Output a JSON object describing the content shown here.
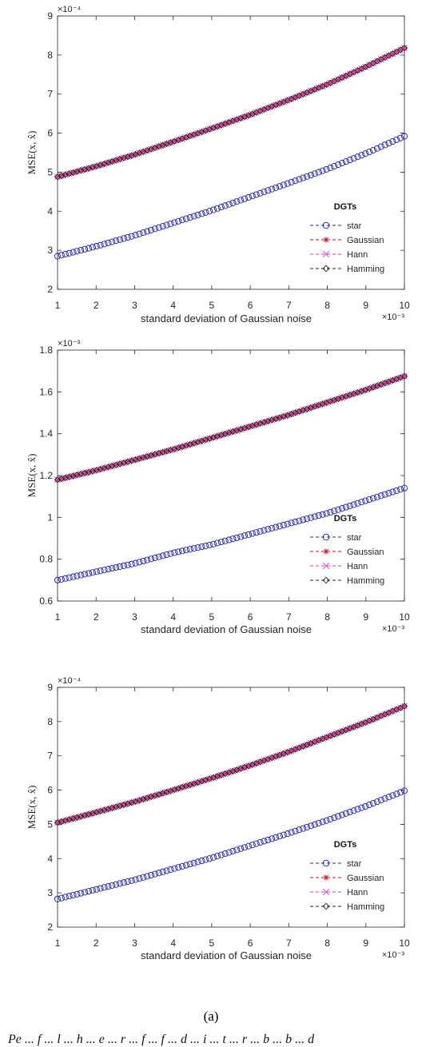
{
  "chart_data": [
    {
      "type": "scatter",
      "title": "",
      "xlabel": "standard deviation of Gaussian noise",
      "ylabel": "MSE(x, x̂)",
      "x_exponent": "×10⁻³",
      "y_exponent": "×10⁻⁴",
      "xlim": [
        1,
        10
      ],
      "ylim": [
        2,
        9
      ],
      "xticks": [
        1,
        2,
        3,
        4,
        5,
        6,
        7,
        8,
        9,
        10
      ],
      "yticks": [
        2,
        3,
        4,
        5,
        6,
        7,
        8,
        9
      ],
      "grid": false,
      "legend_title": "DGTs",
      "legend_placement": "bottom-right",
      "series": [
        {
          "name": "star",
          "marker": "circle",
          "color": "#1f1fb4",
          "x": [
            1,
            2,
            3,
            4,
            5,
            6,
            7,
            8,
            9,
            10
          ],
          "y": [
            2.85,
            3.1,
            3.38,
            3.7,
            4.02,
            4.37,
            4.72,
            5.08,
            5.48,
            5.92
          ]
        },
        {
          "name": "Gaussian",
          "marker": "star",
          "color": "#c0102a",
          "x": [
            1,
            2,
            3,
            4,
            5,
            6,
            7,
            8,
            9,
            10
          ],
          "y": [
            4.88,
            5.15,
            5.45,
            5.78,
            6.12,
            6.47,
            6.85,
            7.25,
            7.7,
            8.18
          ]
        },
        {
          "name": "Hann",
          "marker": "x",
          "color": "#d040c8",
          "x": [
            1,
            2,
            3,
            4,
            5,
            6,
            7,
            8,
            9,
            10
          ],
          "y": [
            4.88,
            5.15,
            5.45,
            5.78,
            6.12,
            6.47,
            6.85,
            7.25,
            7.7,
            8.18
          ]
        },
        {
          "name": "Hamming",
          "marker": "diamond",
          "color": "#222222",
          "x": [
            1,
            2,
            3,
            4,
            5,
            6,
            7,
            8,
            9,
            10
          ],
          "y": [
            4.88,
            5.15,
            5.45,
            5.78,
            6.12,
            6.47,
            6.85,
            7.25,
            7.7,
            8.18
          ]
        }
      ]
    },
    {
      "type": "scatter",
      "title": "",
      "xlabel": "standard deviation of Gaussian noise",
      "ylabel": "MSE(x, x̂)",
      "x_exponent": "×10⁻³",
      "y_exponent": "×10⁻³",
      "xlim": [
        1,
        10
      ],
      "ylim": [
        0.6,
        1.8
      ],
      "xticks": [
        1,
        2,
        3,
        4,
        5,
        6,
        7,
        8,
        9,
        10
      ],
      "yticks": [
        0.6,
        0.8,
        1,
        1.2,
        1.4,
        1.6,
        1.8
      ],
      "grid": false,
      "legend_title": "DGTs",
      "legend_placement": "bottom-right",
      "series": [
        {
          "name": "star",
          "marker": "circle",
          "color": "#1f1fb4",
          "x": [
            1,
            2,
            3,
            4,
            5,
            6,
            7,
            8,
            9,
            10
          ],
          "y": [
            0.7,
            0.74,
            0.78,
            0.83,
            0.87,
            0.92,
            0.97,
            1.02,
            1.08,
            1.14
          ]
        },
        {
          "name": "Gaussian",
          "marker": "star",
          "color": "#c0102a",
          "x": [
            1,
            2,
            3,
            4,
            5,
            6,
            7,
            8,
            9,
            10
          ],
          "y": [
            1.18,
            1.225,
            1.275,
            1.325,
            1.38,
            1.435,
            1.49,
            1.55,
            1.61,
            1.675
          ]
        },
        {
          "name": "Hann",
          "marker": "x",
          "color": "#d040c8",
          "x": [
            1,
            2,
            3,
            4,
            5,
            6,
            7,
            8,
            9,
            10
          ],
          "y": [
            1.18,
            1.225,
            1.275,
            1.325,
            1.38,
            1.435,
            1.49,
            1.55,
            1.61,
            1.675
          ]
        },
        {
          "name": "Hamming",
          "marker": "diamond",
          "color": "#222222",
          "x": [
            1,
            2,
            3,
            4,
            5,
            6,
            7,
            8,
            9,
            10
          ],
          "y": [
            1.18,
            1.225,
            1.275,
            1.325,
            1.38,
            1.435,
            1.49,
            1.55,
            1.61,
            1.675
          ]
        }
      ]
    },
    {
      "type": "scatter",
      "title": "",
      "xlabel": "standard deviation of Gaussian noise",
      "ylabel": "MSE(x, x̂)",
      "x_exponent": "×10⁻³",
      "y_exponent": "×10⁻⁴",
      "xlim": [
        1,
        10
      ],
      "ylim": [
        2,
        9
      ],
      "xticks": [
        1,
        2,
        3,
        4,
        5,
        6,
        7,
        8,
        9,
        10
      ],
      "yticks": [
        2,
        3,
        4,
        5,
        6,
        7,
        8,
        9
      ],
      "grid": false,
      "legend_title": "DGTs",
      "legend_placement": "bottom-right",
      "series": [
        {
          "name": "star",
          "marker": "circle",
          "color": "#1f1fb4",
          "x": [
            1,
            2,
            3,
            4,
            5,
            6,
            7,
            8,
            9,
            10
          ],
          "y": [
            2.82,
            3.1,
            3.38,
            3.7,
            4.02,
            4.38,
            4.74,
            5.12,
            5.53,
            5.98
          ]
        },
        {
          "name": "Gaussian",
          "marker": "star",
          "color": "#c0102a",
          "x": [
            1,
            2,
            3,
            4,
            5,
            6,
            7,
            8,
            9,
            10
          ],
          "y": [
            5.05,
            5.35,
            5.66,
            6.0,
            6.35,
            6.72,
            7.12,
            7.55,
            7.98,
            8.45
          ]
        },
        {
          "name": "Hann",
          "marker": "x",
          "color": "#d040c8",
          "x": [
            1,
            2,
            3,
            4,
            5,
            6,
            7,
            8,
            9,
            10
          ],
          "y": [
            5.05,
            5.35,
            5.66,
            6.0,
            6.35,
            6.72,
            7.12,
            7.55,
            7.98,
            8.45
          ]
        },
        {
          "name": "Hamming",
          "marker": "diamond",
          "color": "#222222",
          "x": [
            1,
            2,
            3,
            4,
            5,
            6,
            7,
            8,
            9,
            10
          ],
          "y": [
            5.05,
            5.35,
            5.66,
            6.0,
            6.35,
            6.72,
            7.12,
            7.55,
            7.98,
            8.45
          ]
        }
      ]
    }
  ],
  "caption": "(a)",
  "bottom_text": "Pe ... f ... l ... h ... e ... r ... f ... f ... d ... i ... t ... r ... b ... b ... d"
}
